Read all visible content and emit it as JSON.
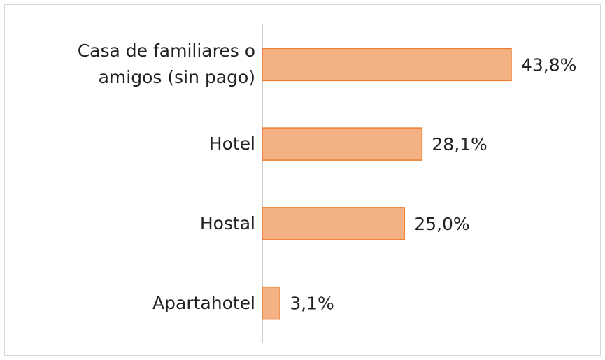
{
  "chart_data": {
    "type": "bar",
    "orientation": "horizontal",
    "categories": [
      "Casa de familiares o\namigos (sin pago)",
      "Hotel",
      "Hostal",
      "Apartahotel"
    ],
    "values": [
      43.8,
      28.1,
      25.0,
      3.1
    ],
    "value_labels": [
      "43,8%",
      "28,1%",
      "25,0%",
      "3,1%"
    ],
    "color": "#f4b183",
    "edge_color": "#ed7d31"
  }
}
